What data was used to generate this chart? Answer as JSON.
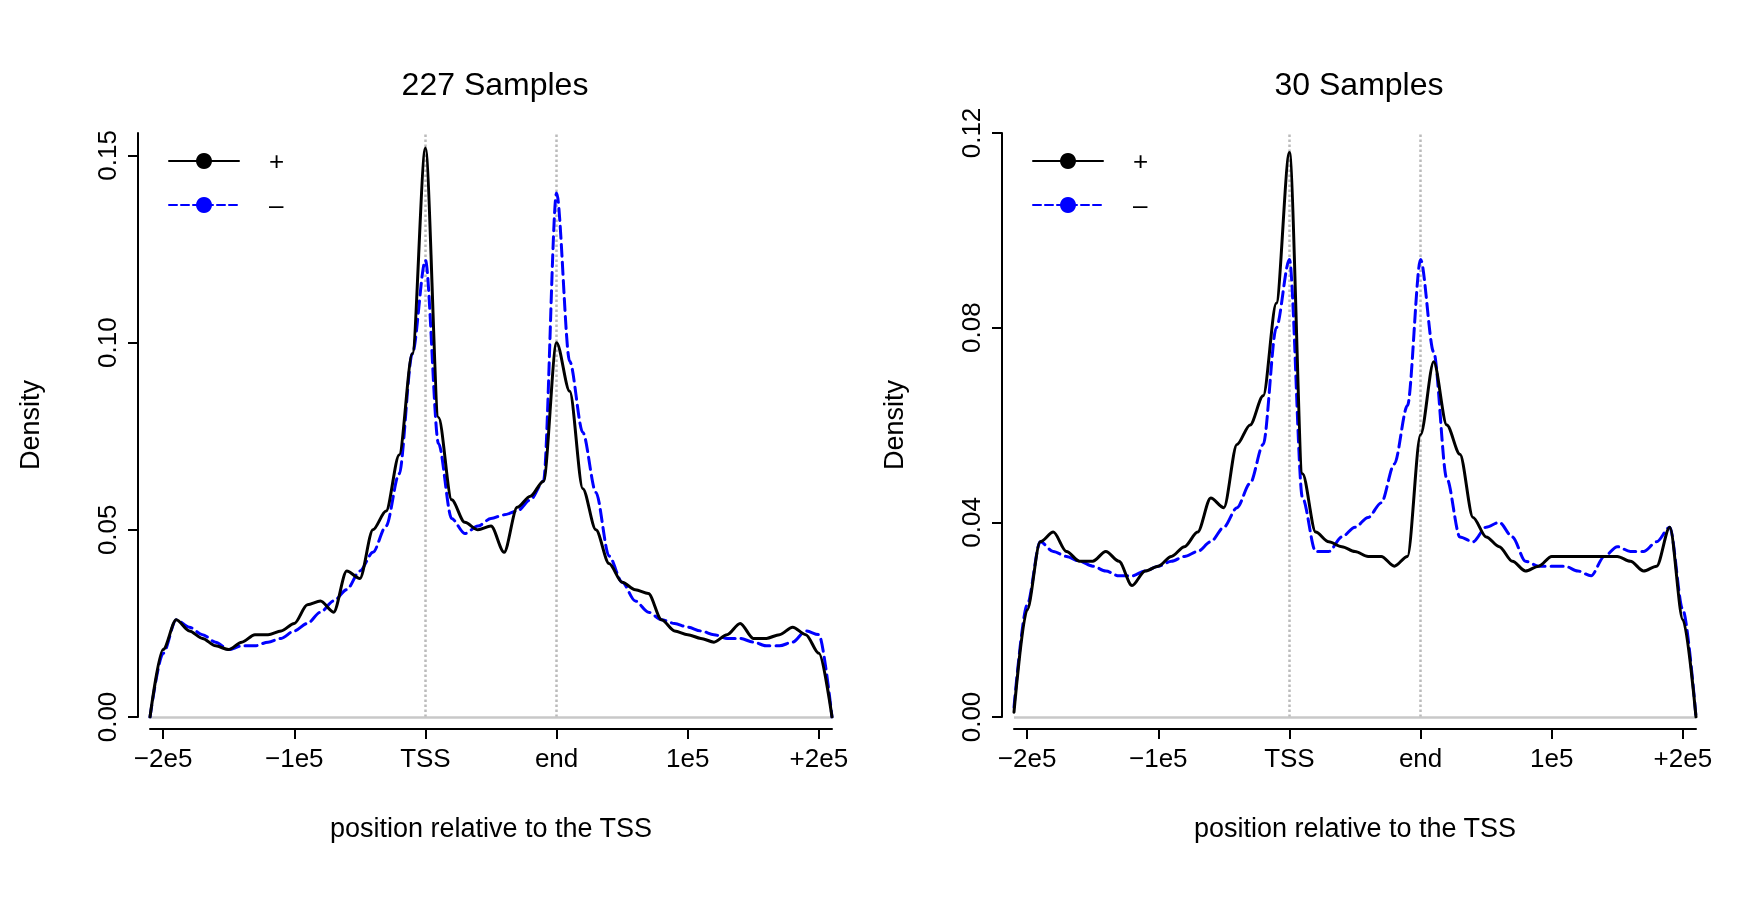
{
  "chart_data": [
    {
      "type": "line",
      "title": "227 Samples",
      "xlabel": "position relative to the TSS",
      "ylabel": "Density",
      "ylim": [
        0,
        0.156
      ],
      "categories": [
        null,
        "−2e5",
        null,
        null,
        null,
        null,
        null,
        null,
        null,
        null,
        null,
        "−1e5",
        null,
        null,
        null,
        null,
        null,
        null,
        null,
        null,
        null,
        "TSS",
        null,
        null,
        null,
        null,
        null,
        null,
        null,
        null,
        null,
        "end",
        null,
        null,
        null,
        null,
        null,
        null,
        null,
        null,
        null,
        "1e5",
        null,
        null,
        null,
        null,
        null,
        null,
        null,
        null,
        null,
        "+2e5",
        null
      ],
      "yticks": [
        {
          "value": 0,
          "label": "0.00"
        },
        {
          "value": 0.05,
          "label": "0.05"
        },
        {
          "value": 0.1,
          "label": "0.10"
        },
        {
          "value": 0.15,
          "label": "0.15"
        }
      ],
      "grid": false,
      "legend": "top left",
      "marker": "none",
      "ref_lines": [
        {
          "axis": "x",
          "value": "TSS",
          "color": "#bbbbbb",
          "line_style": "dotted"
        },
        {
          "axis": "x",
          "value": "end",
          "color": "#bbbbbb",
          "line_style": "dotted"
        },
        {
          "axis": "y",
          "value": 0,
          "color": "#c8c8c8",
          "line_style": "solid"
        }
      ],
      "series": [
        {
          "name": "+",
          "color": "#000000",
          "line_style": "solid",
          "values": [
            0,
            0.018,
            0.026,
            0.023,
            0.021,
            0.019,
            0.018,
            0.02,
            0.022,
            0.022,
            0.023,
            0.025,
            0.03,
            0.031,
            0.028,
            0.039,
            0.037,
            0.05,
            0.055,
            0.07,
            0.097,
            0.152,
            0.08,
            0.058,
            0.052,
            0.05,
            0.051,
            0.044,
            0.056,
            0.059,
            0.063,
            0.1,
            0.087,
            0.061,
            0.05,
            0.041,
            0.036,
            0.034,
            0.033,
            0.026,
            0.023,
            0.022,
            0.021,
            0.02,
            0.022,
            0.025,
            0.021,
            0.021,
            0.022,
            0.024,
            0.022,
            0.017,
            0
          ]
        },
        {
          "name": "–",
          "color": "#0000ff",
          "line_style": "dashed",
          "values": [
            0,
            0.017,
            0.026,
            0.024,
            0.022,
            0.02,
            0.018,
            0.019,
            0.019,
            0.02,
            0.021,
            0.023,
            0.025,
            0.028,
            0.031,
            0.034,
            0.039,
            0.044,
            0.051,
            0.065,
            0.097,
            0.122,
            0.073,
            0.053,
            0.049,
            0.051,
            0.053,
            0.054,
            0.055,
            0.058,
            0.063,
            0.14,
            0.095,
            0.076,
            0.06,
            0.043,
            0.036,
            0.031,
            0.028,
            0.026,
            0.025,
            0.024,
            0.023,
            0.022,
            0.021,
            0.021,
            0.02,
            0.019,
            0.019,
            0.02,
            0.023,
            0.022,
            0
          ]
        }
      ]
    },
    {
      "type": "line",
      "title": "30 Samples",
      "xlabel": "position relative to the TSS",
      "ylabel": "Density",
      "ylim": [
        0,
        0.12
      ],
      "categories": [
        null,
        "−2e5",
        null,
        null,
        null,
        null,
        null,
        null,
        null,
        null,
        null,
        "−1e5",
        null,
        null,
        null,
        null,
        null,
        null,
        null,
        null,
        null,
        "TSS",
        null,
        null,
        null,
        null,
        null,
        null,
        null,
        null,
        null,
        "end",
        null,
        null,
        null,
        null,
        null,
        null,
        null,
        null,
        null,
        "1e5",
        null,
        null,
        null,
        null,
        null,
        null,
        null,
        null,
        null,
        "+2e5",
        null
      ],
      "yticks": [
        {
          "value": 0,
          "label": "0.00"
        },
        {
          "value": 0.04,
          "label": "0.04"
        },
        {
          "value": 0.08,
          "label": "0.08"
        },
        {
          "value": 0.12,
          "label": "0.12"
        }
      ],
      "grid": false,
      "legend": "top left",
      "marker": "none",
      "ref_lines": [
        {
          "axis": "x",
          "value": "TSS",
          "color": "#bbbbbb",
          "line_style": "dotted"
        },
        {
          "axis": "x",
          "value": "end",
          "color": "#bbbbbb",
          "line_style": "dotted"
        },
        {
          "axis": "y",
          "value": 0,
          "color": "#c8c8c8",
          "line_style": "solid"
        }
      ],
      "series": [
        {
          "name": "+",
          "color": "#000000",
          "line_style": "solid",
          "values": [
            0.001,
            0.022,
            0.036,
            0.038,
            0.034,
            0.032,
            0.032,
            0.034,
            0.032,
            0.027,
            0.03,
            0.031,
            0.033,
            0.035,
            0.038,
            0.045,
            0.043,
            0.056,
            0.06,
            0.066,
            0.085,
            0.116,
            0.05,
            0.038,
            0.036,
            0.035,
            0.034,
            0.033,
            0.033,
            0.031,
            0.033,
            0.058,
            0.073,
            0.06,
            0.054,
            0.041,
            0.037,
            0.035,
            0.032,
            0.03,
            0.031,
            0.033,
            0.033,
            0.033,
            0.033,
            0.033,
            0.033,
            0.032,
            0.03,
            0.031,
            0.039,
            0.02,
            0
          ]
        },
        {
          "name": "–",
          "color": "#0000ff",
          "line_style": "dashed",
          "values": [
            0.002,
            0.023,
            0.036,
            0.034,
            0.033,
            0.032,
            0.031,
            0.03,
            0.029,
            0.029,
            0.03,
            0.031,
            0.032,
            0.033,
            0.034,
            0.036,
            0.039,
            0.043,
            0.048,
            0.056,
            0.08,
            0.094,
            0.045,
            0.034,
            0.034,
            0.037,
            0.039,
            0.041,
            0.044,
            0.052,
            0.064,
            0.094,
            0.075,
            0.049,
            0.037,
            0.036,
            0.039,
            0.04,
            0.037,
            0.032,
            0.031,
            0.031,
            0.031,
            0.03,
            0.029,
            0.033,
            0.035,
            0.034,
            0.034,
            0.036,
            0.039,
            0.022,
            0
          ]
        }
      ]
    }
  ]
}
